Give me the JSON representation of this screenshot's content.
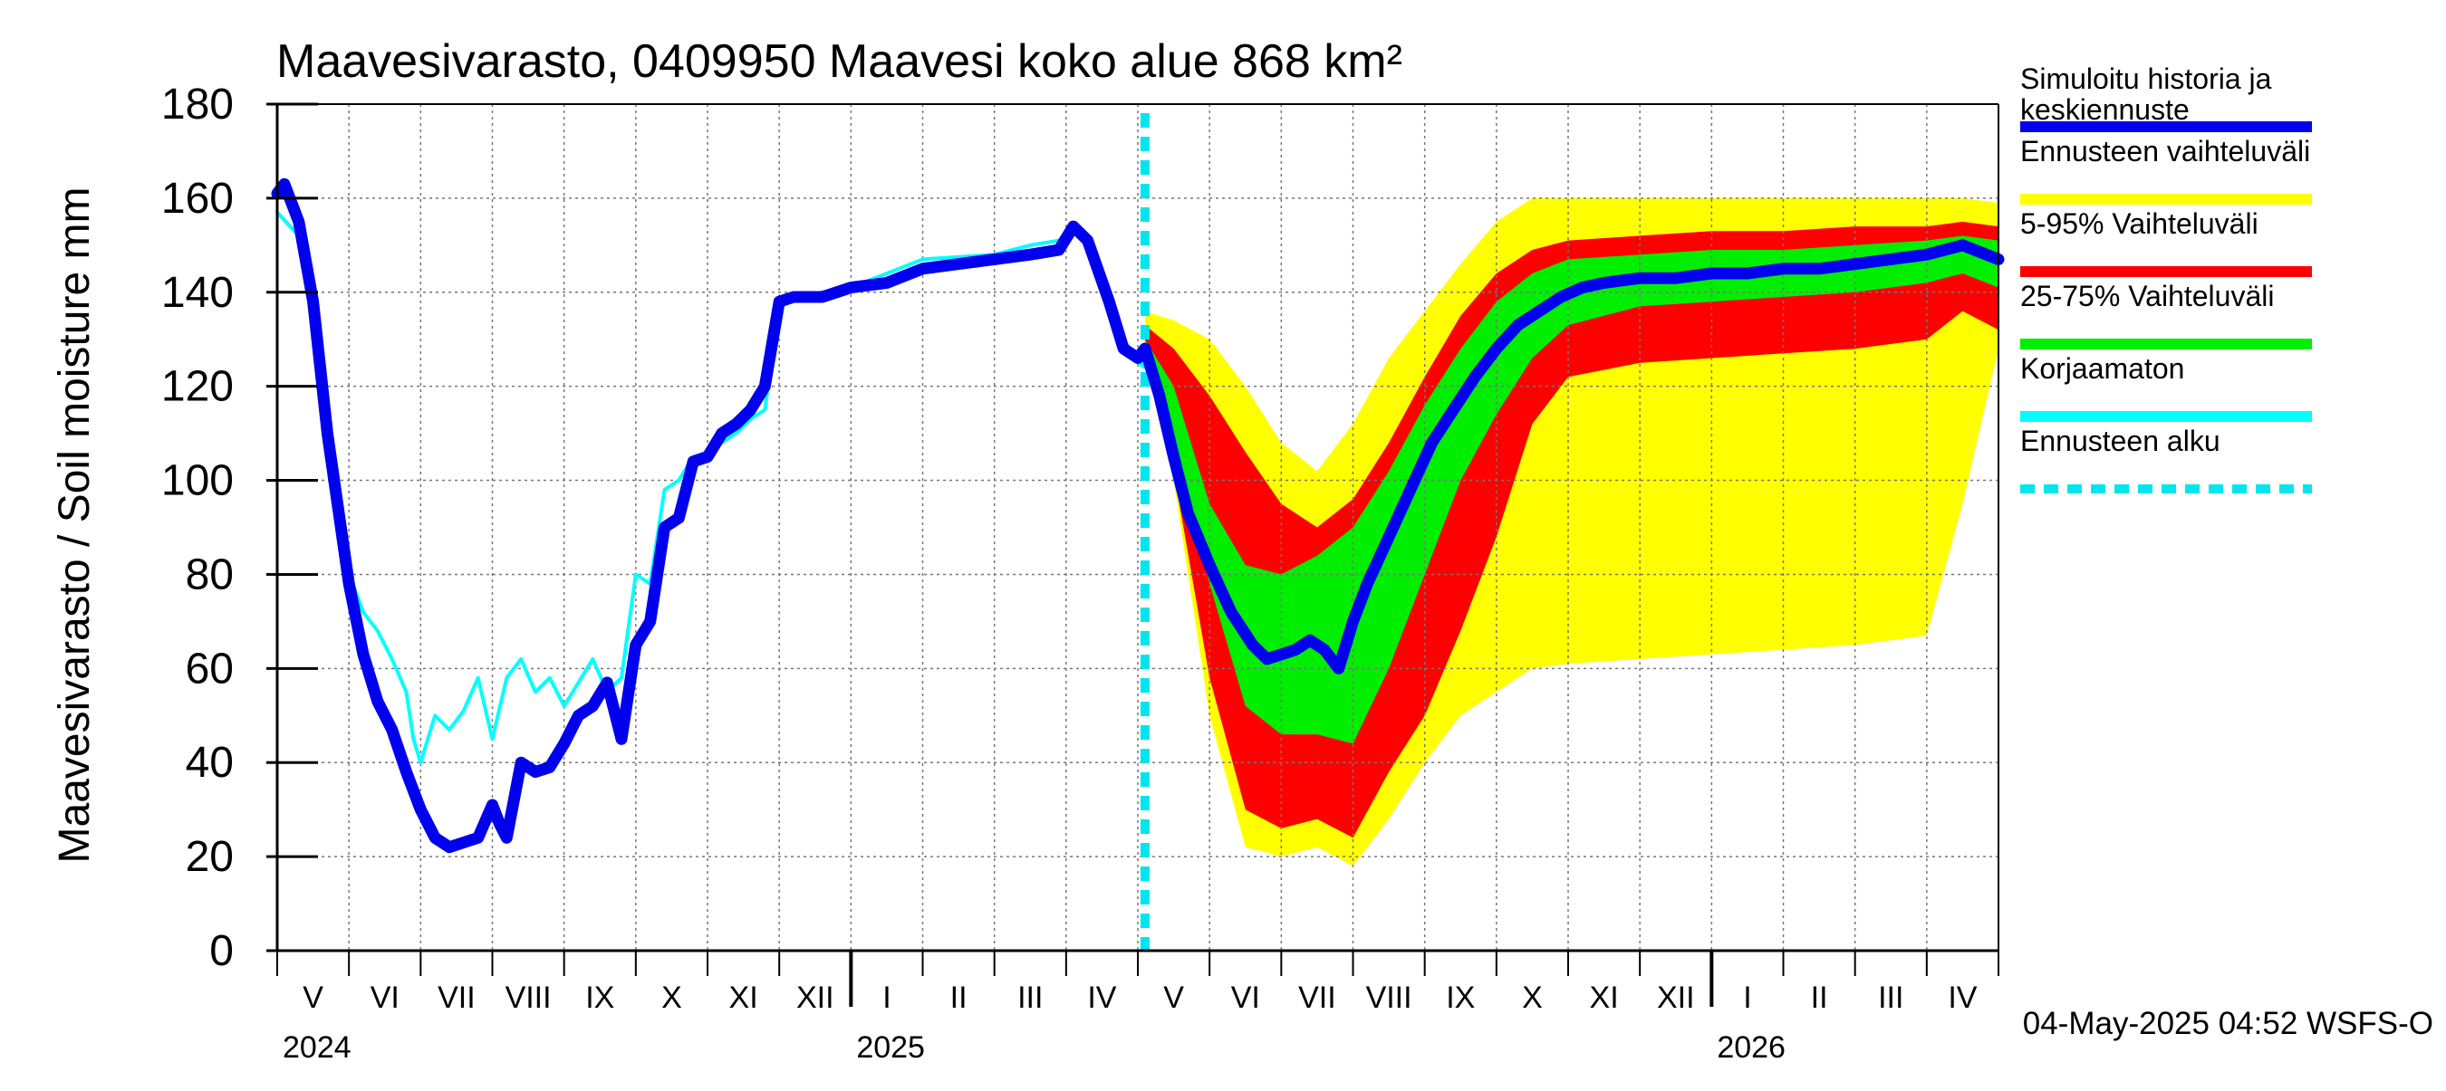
{
  "chart_data": {
    "type": "area",
    "title": "Maavesivarasto, 0409950 Maavesi koko alue 868 km²",
    "ylabel": "Maavesivarasto / Soil moisture   mm",
    "xlabel": "",
    "ylim": [
      0,
      180
    ],
    "yticks": [
      "0",
      "20",
      "40",
      "60",
      "80",
      "100",
      "120",
      "140",
      "160",
      "180"
    ],
    "x_domain_months": [
      0,
      24
    ],
    "month_labels": [
      "V",
      "VI",
      "VII",
      "VIII",
      "IX",
      "X",
      "XI",
      "XII",
      "I",
      "II",
      "III",
      "IV",
      "V",
      "VI",
      "VII",
      "VIII",
      "IX",
      "X",
      "XI",
      "XII",
      "I",
      "II",
      "III",
      "IV"
    ],
    "year_labels": [
      {
        "label": "2024",
        "month": 0
      },
      {
        "label": "2025",
        "month": 8
      },
      {
        "label": "2026",
        "month": 20
      }
    ],
    "forecast_start_month": 12.1,
    "timestamp": "04-May-2025 04:52 WSFS-O",
    "legend": [
      {
        "label": "Simuloitu historia ja keskiennuste",
        "color": "#0000ee",
        "style": "solid"
      },
      {
        "label": "Ennusteen vaihteluväli",
        "color": "#ffff00",
        "style": "solid"
      },
      {
        "label": "5-95% Vaihteluväli",
        "color": "#ff0000",
        "style": "solid"
      },
      {
        "label": "25-75% Vaihteluväli",
        "color": "#00ee00",
        "style": "solid"
      },
      {
        "label": "Korjaamaton",
        "color": "#00ffff",
        "style": "solid"
      },
      {
        "label": "Ennusteen alku",
        "color": "#00e5ee",
        "style": "dashed"
      }
    ],
    "series": [
      {
        "name": "Simuloitu historia ja keskiennuste",
        "color": "#0000ee",
        "x": [
          0,
          0.1,
          0.3,
          0.5,
          0.7,
          1.0,
          1.2,
          1.4,
          1.6,
          1.8,
          2.0,
          2.2,
          2.4,
          2.6,
          2.8,
          3.0,
          3.1,
          3.2,
          3.4,
          3.6,
          3.8,
          4.0,
          4.2,
          4.4,
          4.6,
          4.8,
          5.0,
          5.2,
          5.4,
          5.6,
          5.8,
          6.0,
          6.2,
          6.4,
          6.6,
          6.8,
          7.0,
          7.2,
          7.4,
          7.6,
          7.8,
          8.0,
          8.5,
          9.0,
          9.5,
          10.0,
          10.5,
          10.9,
          11.1,
          11.3,
          11.6,
          11.8,
          12.0,
          12.1,
          12.3,
          12.5,
          12.7,
          13.0,
          13.3,
          13.6,
          13.8,
          14.0,
          14.2,
          14.4,
          14.6,
          14.8,
          15.0,
          15.2,
          15.5,
          15.8,
          16.1,
          16.4,
          16.7,
          17.0,
          17.3,
          17.6,
          17.9,
          18.2,
          18.5,
          19.0,
          19.5,
          20.0,
          20.5,
          21.0,
          21.5,
          22.0,
          22.5,
          23.0,
          23.5,
          24.0
        ],
        "y": [
          161,
          163,
          155,
          138,
          110,
          78,
          63,
          53,
          47,
          38,
          30,
          24,
          22,
          23,
          24,
          31,
          27,
          24,
          40,
          38,
          39,
          44,
          50,
          52,
          57,
          45,
          65,
          70,
          90,
          92,
          104,
          105,
          110,
          112,
          115,
          120,
          138,
          139,
          139,
          139,
          140,
          141,
          142,
          145,
          146,
          147,
          148,
          149,
          154,
          151,
          138,
          128,
          126,
          128,
          118,
          105,
          93,
          82,
          72,
          65,
          62,
          63,
          64,
          66,
          64,
          60,
          70,
          78,
          88,
          98,
          108,
          115,
          122,
          128,
          133,
          136,
          139,
          141,
          142,
          143,
          143,
          144,
          144,
          145,
          145,
          146,
          147,
          148,
          150,
          147
        ]
      },
      {
        "name": "Korjaamaton",
        "color": "#00ffff",
        "x": [
          0,
          0.3,
          0.5,
          0.7,
          1.0,
          1.2,
          1.4,
          1.6,
          1.8,
          1.9,
          2.0,
          2.2,
          2.4,
          2.6,
          2.8,
          3.0,
          3.2,
          3.4,
          3.6,
          3.8,
          4.0,
          4.2,
          4.4,
          4.6,
          4.8,
          5.0,
          5.2,
          5.4,
          5.6,
          5.8,
          6.0,
          6.2,
          6.4,
          6.6,
          6.8,
          7.0,
          7.2,
          8.0,
          9.0,
          10.0,
          10.5,
          10.9,
          11.1,
          11.3,
          11.6,
          11.8,
          12.0,
          12.1
        ],
        "y": [
          157,
          152,
          135,
          108,
          80,
          72,
          68,
          62,
          55,
          45,
          40,
          50,
          47,
          51,
          58,
          45,
          58,
          62,
          55,
          58,
          52,
          57,
          62,
          55,
          58,
          80,
          78,
          98,
          100,
          105,
          106,
          108,
          110,
          113,
          115,
          138,
          139,
          141,
          147,
          148,
          150,
          151,
          153,
          151,
          140,
          130,
          125,
          124
        ]
      }
    ],
    "bands": [
      {
        "name": "Ennusteen vaihteluväli",
        "color": "#ffff00",
        "x": [
          12.1,
          12.5,
          13.0,
          13.5,
          14.0,
          14.5,
          15.0,
          15.5,
          16.0,
          16.5,
          17.0,
          17.5,
          18.0,
          19.0,
          20.0,
          21.0,
          22.0,
          23.0,
          23.5,
          24.0
        ],
        "upper": [
          136,
          134,
          130,
          120,
          108,
          102,
          112,
          126,
          136,
          146,
          155,
          160,
          160,
          160,
          160,
          160,
          160,
          160,
          160,
          159
        ],
        "lower": [
          125,
          100,
          50,
          22,
          20,
          22,
          18,
          28,
          40,
          50,
          55,
          60,
          61,
          62,
          63,
          64,
          65,
          67,
          95,
          128
        ]
      },
      {
        "name": "5-95% Vaihteluväli",
        "color": "#ff0000",
        "x": [
          12.1,
          12.5,
          13.0,
          13.5,
          14.0,
          14.5,
          15.0,
          15.5,
          16.0,
          16.5,
          17.0,
          17.5,
          18.0,
          19.0,
          20.0,
          21.0,
          22.0,
          23.0,
          23.5,
          24.0
        ],
        "upper": [
          133,
          128,
          118,
          106,
          95,
          90,
          96,
          108,
          122,
          135,
          144,
          149,
          151,
          152,
          153,
          153,
          154,
          154,
          155,
          154
        ],
        "lower": [
          126,
          102,
          58,
          30,
          26,
          28,
          24,
          38,
          50,
          68,
          88,
          112,
          122,
          125,
          126,
          127,
          128,
          130,
          136,
          132
        ]
      },
      {
        "name": "25-75% Vaihteluväli",
        "color": "#00ee00",
        "x": [
          12.1,
          12.5,
          13.0,
          13.5,
          14.0,
          14.5,
          15.0,
          15.5,
          16.0,
          16.5,
          17.0,
          17.5,
          18.0,
          19.0,
          20.0,
          21.0,
          22.0,
          23.0,
          23.5,
          24.0
        ],
        "upper": [
          130,
          120,
          95,
          82,
          80,
          84,
          90,
          102,
          116,
          128,
          138,
          144,
          147,
          148,
          149,
          149,
          150,
          151,
          152,
          151
        ],
        "lower": [
          127,
          108,
          78,
          52,
          46,
          46,
          44,
          60,
          80,
          100,
          114,
          126,
          133,
          137,
          138,
          139,
          140,
          142,
          144,
          141
        ]
      }
    ]
  }
}
